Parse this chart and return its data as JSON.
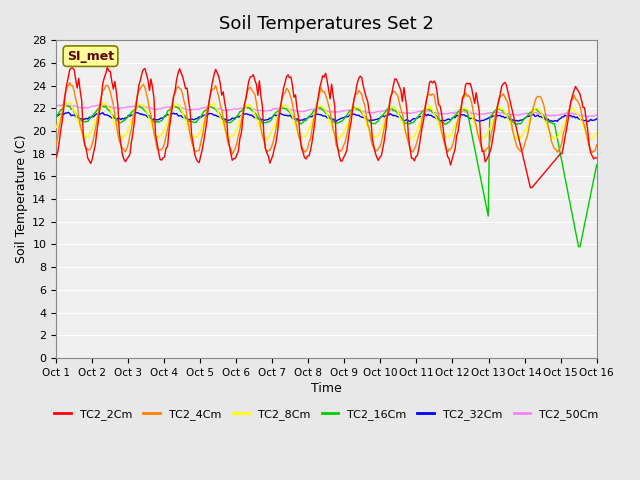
{
  "title": "Soil Temperatures Set 2",
  "xlabel": "Time",
  "ylabel": "Soil Temperature (C)",
  "ylim": [
    0,
    28
  ],
  "yticks": [
    0,
    2,
    4,
    6,
    8,
    10,
    12,
    14,
    16,
    18,
    20,
    22,
    24,
    26,
    28
  ],
  "x_labels": [
    "Oct 1",
    "Oct 2",
    "Oct 3",
    "Oct 4",
    "Oct 5",
    "Oct 6",
    "Oct 7",
    "Oct 8",
    "Oct 9",
    "Oct 10",
    "Oct 11",
    "Oct 12",
    "Oct 13",
    "Oct 14",
    "Oct 15",
    "Oct 16"
  ],
  "series_colors": {
    "TC2_2Cm": "#FF0000",
    "TC2_4Cm": "#FF8000",
    "TC2_8Cm": "#FFFF00",
    "TC2_16Cm": "#00CC00",
    "TC2_32Cm": "#0000FF",
    "TC2_50Cm": "#FF80FF"
  },
  "series_labels": [
    "TC2_2Cm",
    "TC2_4Cm",
    "TC2_8Cm",
    "TC2_16Cm",
    "TC2_32Cm",
    "TC2_50Cm"
  ],
  "background_color": "#E8E8E8",
  "plot_bg_color": "#F0F0F0",
  "annotation_text": "SI_met",
  "annotation_box_color": "#FFFF99",
  "annotation_border_color": "#808000",
  "title_fontsize": 13,
  "axis_label_fontsize": 9
}
